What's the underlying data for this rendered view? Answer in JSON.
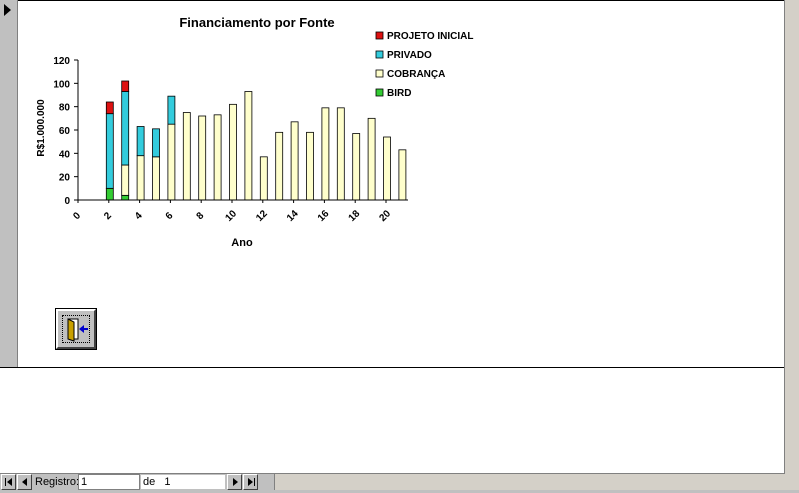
{
  "chart_data": {
    "type": "bar",
    "stacked": true,
    "title": "Financiamento por Fonte",
    "xlabel": "Ano",
    "ylabel": "R$1.000.000",
    "ylim": [
      0,
      120
    ],
    "yticks": [
      "0",
      "20",
      "40",
      "60",
      "80",
      "100",
      "120"
    ],
    "xticks": [
      "0",
      "2",
      "4",
      "6",
      "8",
      "10",
      "12",
      "14",
      "16",
      "18",
      "20"
    ],
    "grid": false,
    "legend_position": "right",
    "categories": [
      1,
      2,
      3,
      4,
      5,
      6,
      7,
      8,
      9,
      10,
      11,
      12,
      13,
      14,
      15,
      16,
      17,
      18,
      19,
      20
    ],
    "series": [
      {
        "name": "BIRD",
        "color": "#33cc33",
        "values": [
          0,
          10,
          4,
          0,
          0,
          0,
          0,
          0,
          0,
          0,
          0,
          0,
          0,
          0,
          0,
          0,
          0,
          0,
          0,
          0
        ]
      },
      {
        "name": "COBRANÇA",
        "color": "#ffffcc",
        "values": [
          0,
          0,
          26,
          38,
          37,
          65,
          75,
          72,
          73,
          82,
          93,
          37,
          58,
          67,
          58,
          79,
          79,
          57,
          70,
          54
        ]
      },
      {
        "name": "PRIVADO",
        "color": "#33ccdd",
        "values": [
          0,
          64,
          63,
          25,
          24,
          24,
          0,
          0,
          0,
          0,
          0,
          0,
          0,
          0,
          0,
          0,
          0,
          0,
          0,
          0
        ]
      },
      {
        "name": "PROJETO INICIAL",
        "color": "#dd1111",
        "values": [
          0,
          10,
          9,
          0,
          0,
          0,
          0,
          0,
          0,
          0,
          0,
          0,
          0,
          0,
          0,
          0,
          0,
          0,
          0,
          0
        ]
      }
    ],
    "extra_last_bar": {
      "category": 21,
      "COBRANÇA": 43
    }
  },
  "legend_order": [
    "PROJETO INICIAL",
    "PRIVADO",
    "COBRANÇA",
    "BIRD"
  ],
  "exit_button": {
    "icon": "exit-door-icon"
  },
  "navigation": {
    "record_label": "Registro:",
    "record_value": "1",
    "of_label": "de",
    "total": "1"
  }
}
